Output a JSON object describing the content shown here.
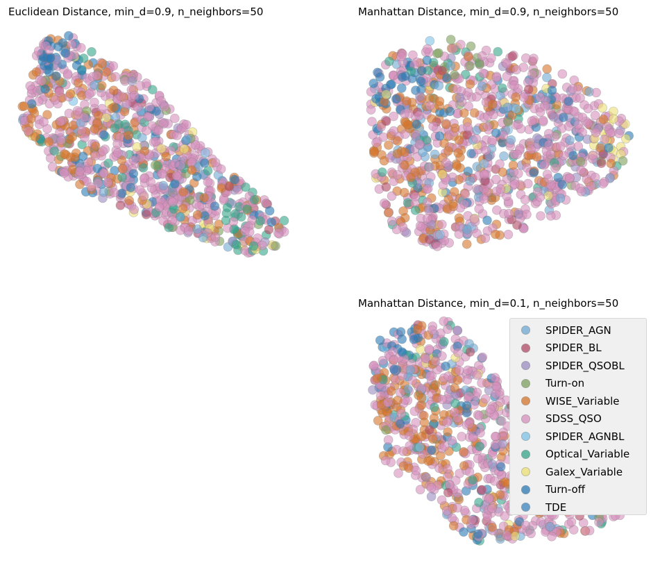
{
  "chart_data": [
    {
      "type": "scatter",
      "title": "Euclidean Distance, min_d=0.9, n_neighbors=50",
      "xlabel": "",
      "ylabel": "",
      "axes": "off",
      "grid": false,
      "note_points": "approximate embedding clusters per class"
    },
    {
      "type": "scatter",
      "title": "Manhattan Distance, min_d=0.9, n_neighbors=50",
      "xlabel": "",
      "ylabel": "",
      "axes": "off",
      "grid": false
    },
    {
      "type": "scatter",
      "title": "Manhattan Distance, min_d=0.1, n_neighbors=50",
      "xlabel": "",
      "ylabel": "",
      "axes": "off",
      "grid": false,
      "legend": "top-right"
    }
  ],
  "series": [
    {
      "name": "SPIDER_AGN",
      "color": "#6fa8d2"
    },
    {
      "name": "SPIDER_BL",
      "color": "#b04a64"
    },
    {
      "name": "SPIDER_QSOBL",
      "color": "#9b8cc0"
    },
    {
      "name": "Turn-on",
      "color": "#7da05c"
    },
    {
      "name": "WISE_Variable",
      "color": "#d5742a"
    },
    {
      "name": "SDSS_QSO",
      "color": "#d690bd"
    },
    {
      "name": "SPIDER_AGNBL",
      "color": "#7ec2e6"
    },
    {
      "name": "Optical_Variable",
      "color": "#33a58a"
    },
    {
      "name": "Galex_Variable",
      "color": "#ece074"
    },
    {
      "name": "Turn-off",
      "color": "#2a79b4"
    },
    {
      "name": "TDE",
      "color": "#3d85bf"
    }
  ]
}
